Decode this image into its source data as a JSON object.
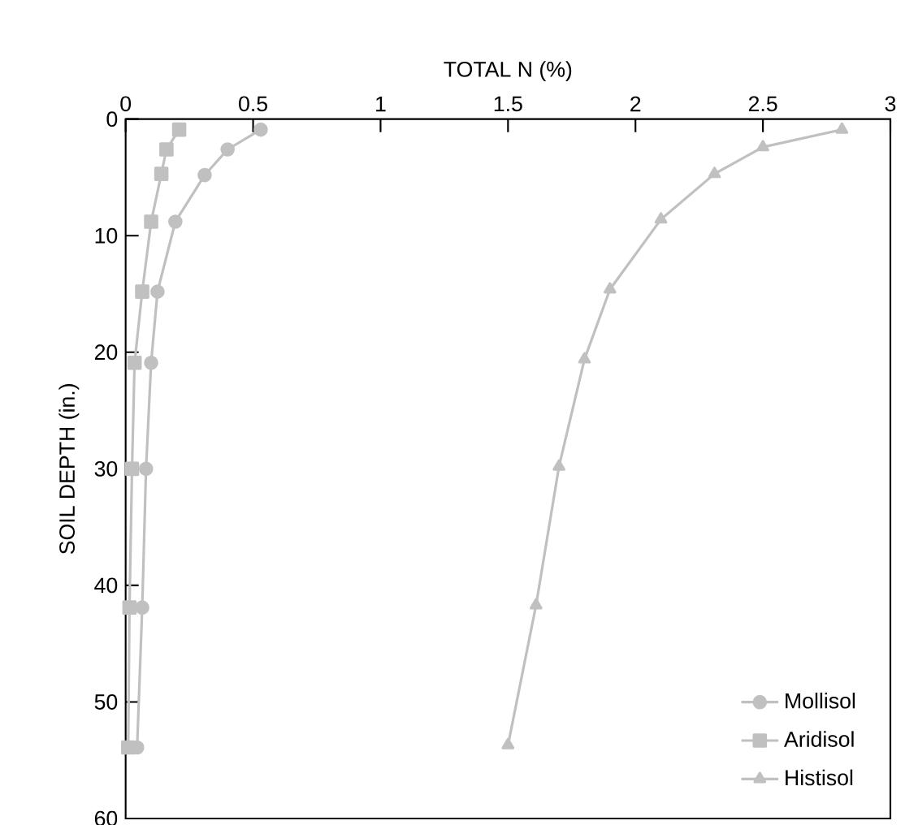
{
  "chart_data": {
    "type": "line",
    "xlabel": "TOTAL N (%)",
    "ylabel": "SOIL DEPTH (in.)",
    "xlim": [
      0,
      3
    ],
    "xticks": [
      0,
      0.5,
      1,
      1.5,
      2,
      2.5,
      3
    ],
    "ylim": [
      60,
      0
    ],
    "yticks": [
      0,
      10,
      20,
      30,
      40,
      50,
      60
    ],
    "grid": false,
    "legend": "bottom right",
    "line_style": "solid",
    "series": [
      {
        "name": "Mollisol",
        "color": "#c0c0c0",
        "marker": "circle",
        "x": [
          0.53,
          0.4,
          0.31,
          0.195,
          0.125,
          0.1,
          0.08,
          0.065,
          0.045
        ],
        "values": [
          0.9,
          2.6,
          4.8,
          8.8,
          14.8,
          20.9,
          30,
          41.9,
          53.9
        ]
      },
      {
        "name": "Aridisol",
        "color": "#c0c0c0",
        "marker": "square",
        "x": [
          0.21,
          0.16,
          0.14,
          0.1,
          0.065,
          0.035,
          0.025,
          0.015,
          0.01
        ],
        "values": [
          0.9,
          2.6,
          4.7,
          8.8,
          14.8,
          20.9,
          30,
          41.9,
          53.9
        ]
      },
      {
        "name": "Histisol",
        "color": "#c0c0c0",
        "marker": "triangle",
        "x": [
          2.81,
          2.5,
          2.31,
          2.1,
          1.9,
          1.8,
          1.7,
          1.61,
          1.5
        ],
        "values": [
          0.9,
          2.4,
          4.7,
          8.6,
          14.6,
          20.6,
          29.8,
          41.7,
          53.7
        ]
      }
    ]
  }
}
